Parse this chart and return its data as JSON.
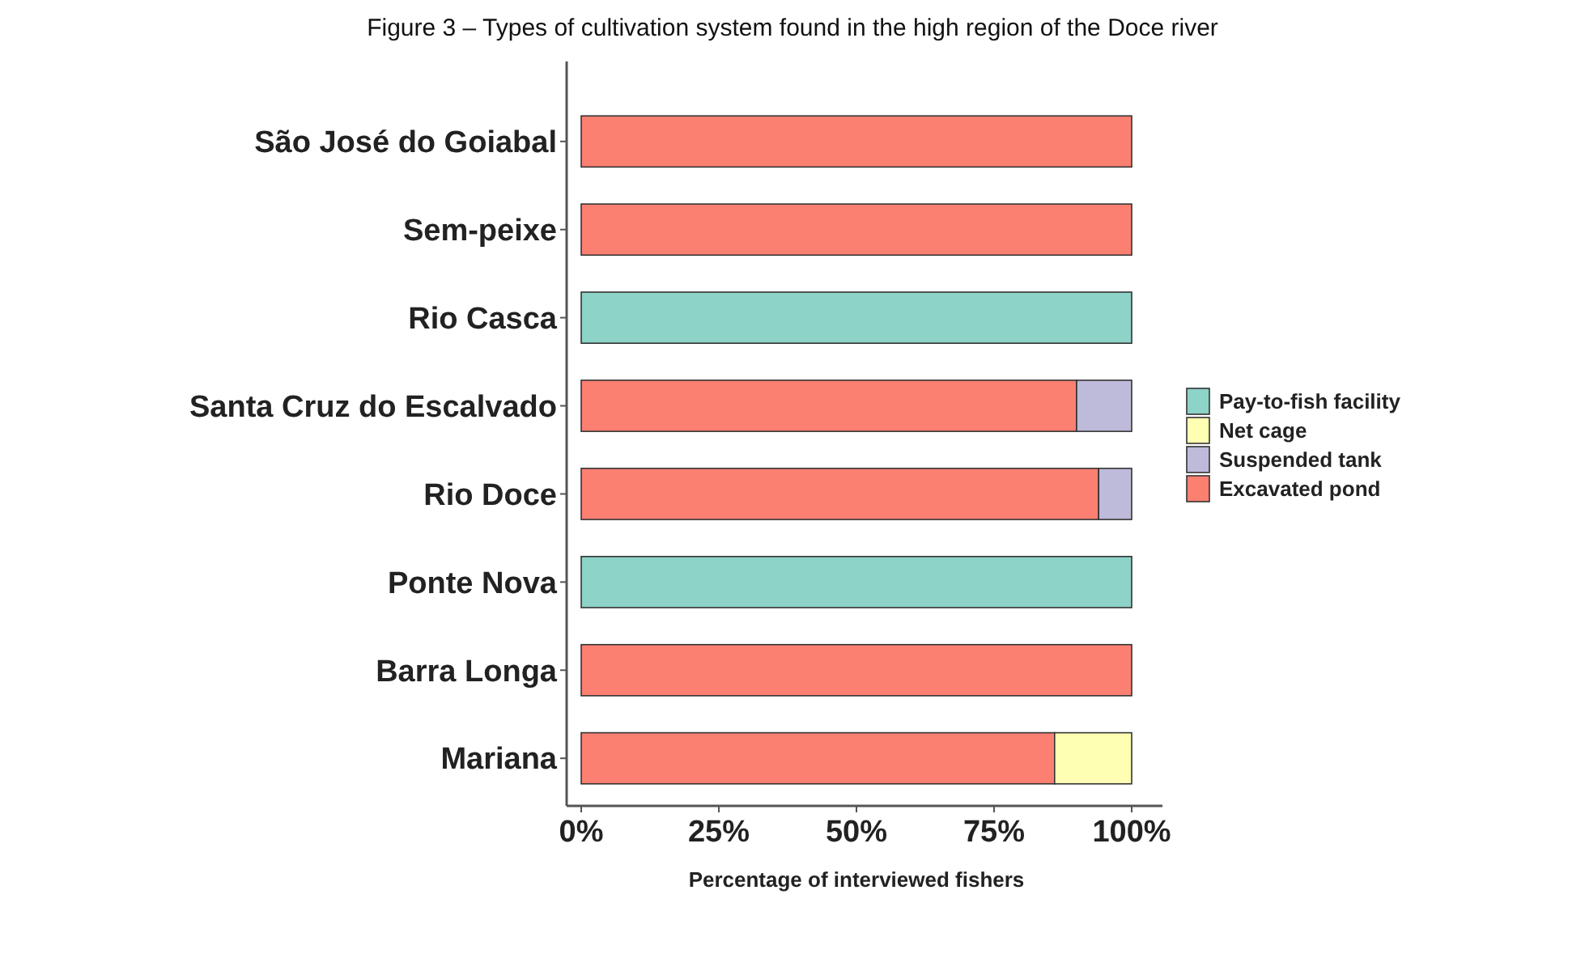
{
  "chart_data": {
    "type": "bar",
    "orientation": "horizontal",
    "stacked": true,
    "title": "Figure 3 – Types of cultivation system found in the high region of the Doce river",
    "xlabel": "Percentage of interviewed fishers",
    "categories": [
      "São José do Goiabal",
      "Sem-peixe",
      "Rio Casca",
      "Santa Cruz do Escalvado",
      "Rio Doce",
      "Ponte Nova",
      "Barra Longa",
      "Mariana"
    ],
    "series": [
      {
        "name": "Excavated pond",
        "color": "#fb8072",
        "values": [
          100,
          100,
          0,
          90,
          94,
          0,
          100,
          86
        ]
      },
      {
        "name": "Suspended tank",
        "color": "#bebada",
        "values": [
          0,
          0,
          0,
          10,
          6,
          0,
          0,
          0
        ]
      },
      {
        "name": "Net cage",
        "color": "#ffffb3",
        "values": [
          0,
          0,
          0,
          0,
          0,
          0,
          0,
          14
        ]
      },
      {
        "name": "Pay-to-fish facility",
        "color": "#8dd3c7",
        "values": [
          0,
          0,
          100,
          0,
          0,
          100,
          0,
          0
        ]
      }
    ],
    "xlim": [
      0,
      100
    ],
    "xticks": [
      {
        "value": 0,
        "label": "0%"
      },
      {
        "value": 25,
        "label": "25%"
      },
      {
        "value": 50,
        "label": "50%"
      },
      {
        "value": 75,
        "label": "75%"
      },
      {
        "value": 100,
        "label": "100%"
      }
    ],
    "grid": false,
    "legend": "right"
  }
}
